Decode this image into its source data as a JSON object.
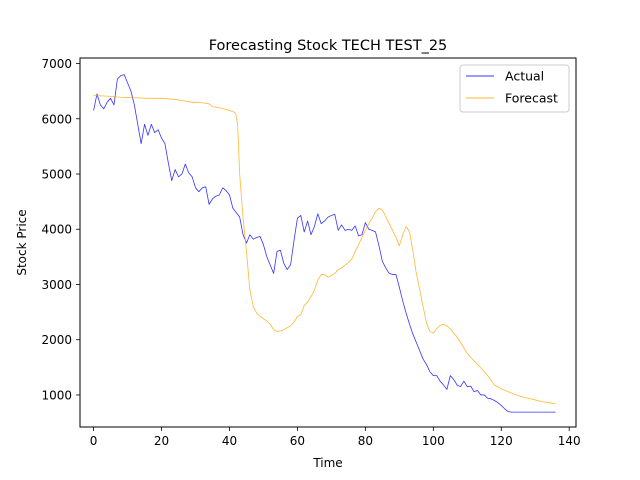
{
  "chart_data": {
    "type": "line",
    "title": "Forecasting Stock TECH TEST_25",
    "xlabel": "Time",
    "ylabel": "Stock Price",
    "xlim": [
      -4,
      142
    ],
    "ylim": [
      420,
      7100
    ],
    "xticks": [
      0,
      20,
      40,
      60,
      80,
      100,
      120,
      140
    ],
    "yticks": [
      1000,
      2000,
      3000,
      4000,
      5000,
      6000,
      7000
    ],
    "grid": false,
    "legend_position": "top-right",
    "series": [
      {
        "name": "Actual",
        "color": "#0000ff",
        "points": [
          [
            0,
            6150
          ],
          [
            1,
            6450
          ],
          [
            2,
            6250
          ],
          [
            3,
            6180
          ],
          [
            4,
            6300
          ],
          [
            5,
            6370
          ],
          [
            6,
            6250
          ],
          [
            7,
            6720
          ],
          [
            8,
            6780
          ],
          [
            9,
            6800
          ],
          [
            10,
            6650
          ],
          [
            11,
            6500
          ],
          [
            12,
            6250
          ],
          [
            13,
            5900
          ],
          [
            14,
            5550
          ],
          [
            15,
            5900
          ],
          [
            16,
            5700
          ],
          [
            17,
            5900
          ],
          [
            18,
            5750
          ],
          [
            19,
            5800
          ],
          [
            20,
            5650
          ],
          [
            21,
            5550
          ],
          [
            22,
            5200
          ],
          [
            23,
            4880
          ],
          [
            24,
            5080
          ],
          [
            25,
            4950
          ],
          [
            26,
            5000
          ],
          [
            27,
            5180
          ],
          [
            28,
            5020
          ],
          [
            29,
            4950
          ],
          [
            30,
            4750
          ],
          [
            31,
            4680
          ],
          [
            32,
            4750
          ],
          [
            33,
            4770
          ],
          [
            34,
            4450
          ],
          [
            35,
            4550
          ],
          [
            36,
            4600
          ],
          [
            37,
            4620
          ],
          [
            38,
            4750
          ],
          [
            39,
            4700
          ],
          [
            40,
            4620
          ],
          [
            41,
            4380
          ],
          [
            42,
            4300
          ],
          [
            43,
            4220
          ],
          [
            44,
            3900
          ],
          [
            45,
            3750
          ],
          [
            46,
            3900
          ],
          [
            47,
            3820
          ],
          [
            48,
            3850
          ],
          [
            49,
            3870
          ],
          [
            50,
            3720
          ],
          [
            51,
            3500
          ],
          [
            52,
            3350
          ],
          [
            53,
            3200
          ],
          [
            54,
            3600
          ],
          [
            55,
            3620
          ],
          [
            56,
            3380
          ],
          [
            57,
            3270
          ],
          [
            58,
            3360
          ],
          [
            59,
            3800
          ],
          [
            60,
            4200
          ],
          [
            61,
            4250
          ],
          [
            62,
            3950
          ],
          [
            63,
            4150
          ],
          [
            64,
            3900
          ],
          [
            65,
            4050
          ],
          [
            66,
            4280
          ],
          [
            67,
            4100
          ],
          [
            68,
            4150
          ],
          [
            69,
            4220
          ],
          [
            70,
            4250
          ],
          [
            71,
            4270
          ],
          [
            72,
            3980
          ],
          [
            73,
            4080
          ],
          [
            74,
            3980
          ],
          [
            75,
            4000
          ],
          [
            76,
            3980
          ],
          [
            77,
            4060
          ],
          [
            78,
            3880
          ],
          [
            79,
            3900
          ],
          [
            80,
            4120
          ],
          [
            81,
            4000
          ],
          [
            82,
            3980
          ],
          [
            83,
            3950
          ],
          [
            84,
            3700
          ],
          [
            85,
            3420
          ],
          [
            86,
            3300
          ],
          [
            87,
            3200
          ],
          [
            88,
            3180
          ],
          [
            89,
            3180
          ],
          [
            90,
            2950
          ],
          [
            91,
            2700
          ],
          [
            92,
            2480
          ],
          [
            93,
            2280
          ],
          [
            94,
            2100
          ],
          [
            95,
            1950
          ],
          [
            96,
            1800
          ],
          [
            97,
            1650
          ],
          [
            98,
            1550
          ],
          [
            99,
            1420
          ],
          [
            100,
            1350
          ],
          [
            101,
            1350
          ],
          [
            102,
            1250
          ],
          [
            103,
            1180
          ],
          [
            104,
            1100
          ],
          [
            105,
            1350
          ],
          [
            106,
            1280
          ],
          [
            107,
            1180
          ],
          [
            108,
            1150
          ],
          [
            109,
            1250
          ],
          [
            110,
            1150
          ],
          [
            111,
            1160
          ],
          [
            112,
            1060
          ],
          [
            113,
            1080
          ],
          [
            114,
            1000
          ],
          [
            115,
            1000
          ],
          [
            116,
            940
          ],
          [
            117,
            930
          ],
          [
            118,
            900
          ],
          [
            119,
            860
          ],
          [
            120,
            810
          ],
          [
            121,
            750
          ],
          [
            122,
            700
          ],
          [
            123,
            690
          ],
          [
            124,
            690
          ],
          [
            126,
            690
          ],
          [
            128,
            690
          ],
          [
            130,
            690
          ],
          [
            132,
            690
          ],
          [
            134,
            690
          ],
          [
            136,
            690
          ]
        ]
      },
      {
        "name": "Forecast",
        "color": "#ffa500",
        "points": [
          [
            0,
            6420
          ],
          [
            4,
            6410
          ],
          [
            8,
            6390
          ],
          [
            12,
            6380
          ],
          [
            16,
            6370
          ],
          [
            20,
            6370
          ],
          [
            24,
            6350
          ],
          [
            27,
            6320
          ],
          [
            29,
            6300
          ],
          [
            32,
            6290
          ],
          [
            34,
            6270
          ],
          [
            35,
            6220
          ],
          [
            37,
            6200
          ],
          [
            39,
            6170
          ],
          [
            41,
            6130
          ],
          [
            41.8,
            6100
          ],
          [
            42.4,
            5900
          ],
          [
            43,
            5000
          ],
          [
            44,
            4200
          ],
          [
            45,
            3600
          ],
          [
            46,
            2900
          ],
          [
            47,
            2600
          ],
          [
            48,
            2480
          ],
          [
            49,
            2420
          ],
          [
            50,
            2380
          ],
          [
            51,
            2340
          ],
          [
            52,
            2280
          ],
          [
            53,
            2180
          ],
          [
            54,
            2150
          ],
          [
            55,
            2160
          ],
          [
            56,
            2180
          ],
          [
            57,
            2220
          ],
          [
            58,
            2250
          ],
          [
            59,
            2320
          ],
          [
            60,
            2420
          ],
          [
            61,
            2450
          ],
          [
            62,
            2620
          ],
          [
            63,
            2680
          ],
          [
            64,
            2780
          ],
          [
            65,
            2900
          ],
          [
            66,
            3080
          ],
          [
            67,
            3180
          ],
          [
            68,
            3180
          ],
          [
            69,
            3130
          ],
          [
            70,
            3160
          ],
          [
            71,
            3200
          ],
          [
            72,
            3270
          ],
          [
            73,
            3300
          ],
          [
            74,
            3350
          ],
          [
            75,
            3400
          ],
          [
            76,
            3460
          ],
          [
            77,
            3600
          ],
          [
            78,
            3720
          ],
          [
            79,
            3850
          ],
          [
            80,
            3980
          ],
          [
            81,
            4100
          ],
          [
            82,
            4200
          ],
          [
            83,
            4320
          ],
          [
            84,
            4380
          ],
          [
            85,
            4350
          ],
          [
            86,
            4230
          ],
          [
            87,
            4100
          ],
          [
            88,
            3980
          ],
          [
            89,
            3850
          ],
          [
            90,
            3700
          ],
          [
            91,
            3900
          ],
          [
            92,
            4050
          ],
          [
            93,
            3950
          ],
          [
            94,
            3600
          ],
          [
            95,
            3200
          ],
          [
            96,
            2900
          ],
          [
            97,
            2600
          ],
          [
            98,
            2300
          ],
          [
            99,
            2150
          ],
          [
            100,
            2120
          ],
          [
            101,
            2200
          ],
          [
            102,
            2260
          ],
          [
            103,
            2280
          ],
          [
            104,
            2250
          ],
          [
            105,
            2200
          ],
          [
            106,
            2120
          ],
          [
            107,
            2050
          ],
          [
            108,
            1950
          ],
          [
            109,
            1850
          ],
          [
            110,
            1750
          ],
          [
            111,
            1680
          ],
          [
            112,
            1620
          ],
          [
            113,
            1550
          ],
          [
            114,
            1490
          ],
          [
            115,
            1420
          ],
          [
            116,
            1350
          ],
          [
            117,
            1270
          ],
          [
            118,
            1180
          ],
          [
            120,
            1110
          ],
          [
            122,
            1060
          ],
          [
            124,
            1010
          ],
          [
            126,
            970
          ],
          [
            128,
            940
          ],
          [
            130,
            910
          ],
          [
            132,
            880
          ],
          [
            134,
            860
          ],
          [
            136,
            840
          ]
        ]
      }
    ]
  }
}
